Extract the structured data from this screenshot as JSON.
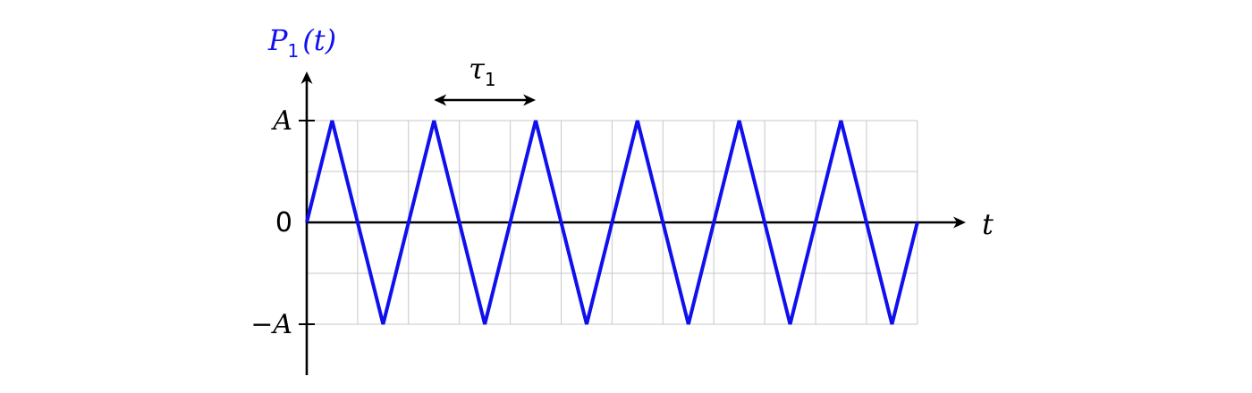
{
  "chart_data": {
    "type": "line",
    "title": "",
    "ylabel": "P",
    "ylabel_sub": "1",
    "ylabel_arg": "(t)",
    "xlabel": "t",
    "ytick_labels": [
      "A",
      "0",
      "−A"
    ],
    "ytick_values": [
      1,
      0,
      -1
    ],
    "period_label": "τ",
    "period_label_sub": "1",
    "period_interval": [
      2.5,
      4.5
    ],
    "xlim": [
      0,
      12.8
    ],
    "ylim": [
      -1.6,
      1.4
    ],
    "grid": true,
    "grid_x": [
      0,
      1,
      2,
      3,
      4,
      5,
      6,
      7,
      8,
      9,
      10,
      11,
      12
    ],
    "grid_y": [
      -1,
      -0.5,
      0,
      0.5,
      1
    ],
    "series": [
      {
        "x": [
          0,
          0.5,
          1.5,
          2.5,
          3.5,
          4.5,
          5.5,
          6.5,
          7.5,
          8.5,
          9.5,
          10.5,
          11.5,
          12
        ],
        "y": [
          0,
          1,
          -1,
          1,
          -1,
          1,
          -1,
          1,
          -1,
          1,
          -1,
          1,
          -1,
          0
        ]
      }
    ],
    "colors": {
      "series": "#1010ee",
      "axis": "#000000",
      "grid": "#c8c8c8",
      "ylabel": "#1010ee"
    }
  }
}
